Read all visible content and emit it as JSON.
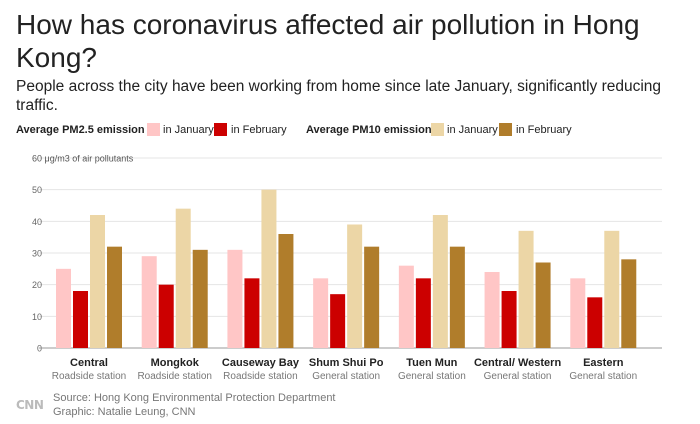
{
  "title": "How has coronavirus affected air pollution in Hong Kong?",
  "subtitle": "People across the city have been working from home since late January, significantly reducing traffic.",
  "legend": {
    "pm25_title": "Average PM2.5 emission",
    "pm10_title": "Average PM10 emission",
    "january": "in January",
    "february": "in February"
  },
  "colors": {
    "pm25_jan": "#ffc6c6",
    "pm25_feb": "#cc0000",
    "pm10_jan": "#ecd6a6",
    "pm10_feb": "#b07d2b",
    "grid": "#e4e4e4"
  },
  "chart_data": {
    "type": "bar",
    "title": "How has coronavirus affected air pollution in Hong Kong?",
    "ylabel": "60 μg/m3 of air pollutants",
    "ylim": [
      0,
      60
    ],
    "yticks": [
      0,
      10,
      20,
      30,
      40,
      50,
      60
    ],
    "grid": true,
    "categories": [
      "Central",
      "Mongkok",
      "Causeway Bay",
      "Shum Shui Po",
      "Tuen Mun",
      "Central/ Western",
      "Eastern"
    ],
    "station_types": [
      "Roadside station",
      "Roadside station",
      "Roadside station",
      "General station",
      "General station",
      "General station",
      "General station"
    ],
    "series": [
      {
        "name": "Average PM2.5 emission in January",
        "key": "pm25_jan",
        "values": [
          25,
          29,
          31,
          22,
          26,
          24,
          22
        ]
      },
      {
        "name": "Average PM2.5 emission in February",
        "key": "pm25_feb",
        "values": [
          18,
          20,
          22,
          17,
          22,
          18,
          16
        ]
      },
      {
        "name": "Average PM10 emission in January",
        "key": "pm10_jan",
        "values": [
          42,
          44,
          50,
          39,
          42,
          37,
          37
        ]
      },
      {
        "name": "Average PM10 emission in February",
        "key": "pm10_feb",
        "values": [
          32,
          31,
          36,
          32,
          32,
          27,
          28
        ]
      }
    ]
  },
  "footer": {
    "source": "Source: Hong Kong Environmental Protection Department",
    "graphic": "Graphic: Natalie Leung, CNN",
    "logo": "CNN"
  }
}
